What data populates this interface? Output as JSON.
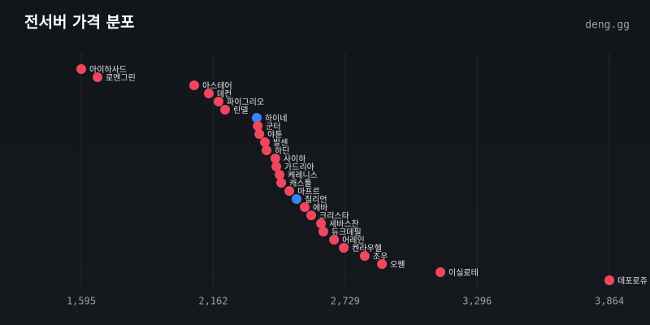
{
  "chart_data": {
    "type": "scatter",
    "title": "전서버 가격 분포",
    "source": "deng.gg",
    "categories": [
      "아이하사드",
      "로엔그린",
      "아스테어",
      "데컨",
      "파이그리오",
      "린델",
      "하이네",
      "군터",
      "야툰",
      "발센",
      "하딘",
      "사이하",
      "가드리아",
      "케레니스",
      "캐스툴",
      "마프르",
      "질리언",
      "에바",
      "크리스타",
      "세바스찬",
      "듀크데필",
      "어레인",
      "켄라우헬",
      "조우",
      "오웬",
      "이실로테",
      "데포로쥬"
    ],
    "values": [
      1595,
      1665,
      2080,
      2143,
      2185,
      2213,
      2349,
      2353,
      2360,
      2384,
      2391,
      2429,
      2433,
      2447,
      2454,
      2489,
      2520,
      2555,
      2583,
      2625,
      2635,
      2681,
      2723,
      2813,
      2887,
      3138,
      3864
    ],
    "colors": [
      "#f0475e",
      "#f0475e",
      "#f0475e",
      "#f0475e",
      "#f0475e",
      "#f0475e",
      "#3b82f6",
      "#f0475e",
      "#f0475e",
      "#f0475e",
      "#f0475e",
      "#f0475e",
      "#f0475e",
      "#f0475e",
      "#f0475e",
      "#f0475e",
      "#3b82f6",
      "#f0475e",
      "#f0475e",
      "#f0475e",
      "#f0475e",
      "#f0475e",
      "#f0475e",
      "#f0475e",
      "#f0475e",
      "#f0475e",
      "#f0475e"
    ],
    "xlim": [
      1595,
      3864
    ],
    "xticks": [
      {
        "value": 1595,
        "label": "1,595"
      },
      {
        "value": 2162,
        "label": "2,162"
      },
      {
        "value": 2729,
        "label": "2,729"
      },
      {
        "value": 3296,
        "label": "3,296"
      },
      {
        "value": 3864,
        "label": "3,864"
      }
    ],
    "grid": true
  }
}
